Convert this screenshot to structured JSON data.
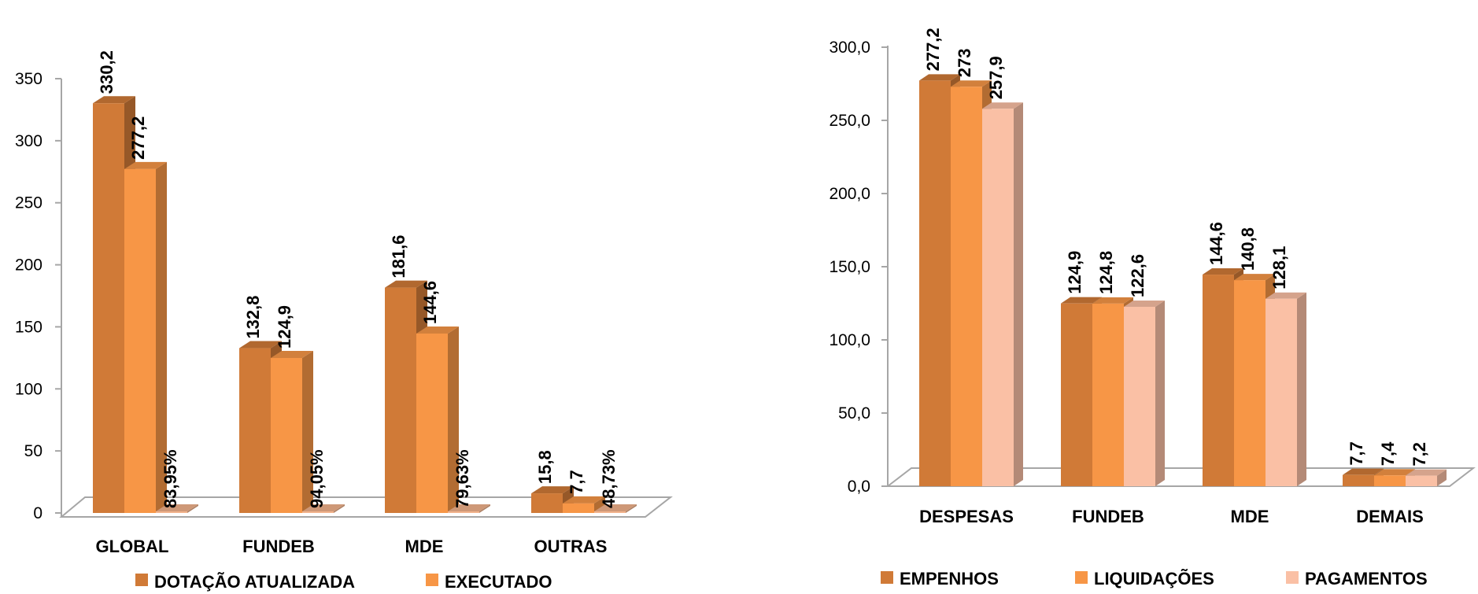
{
  "charts": [
    {
      "type": "bar",
      "categories": [
        "GLOBAL",
        "FUNDEB",
        "MDE",
        "OUTRAS"
      ],
      "series": [
        {
          "name": "DOTAÇÃO ATUALIZADA",
          "values": [
            330.2,
            132.8,
            181.6,
            15.8
          ],
          "labels": [
            "330,2",
            "132,8",
            "181,6",
            "15,8"
          ],
          "color": "#D07A37"
        },
        {
          "name": "EXECUTADO",
          "values": [
            277.2,
            124.9,
            144.6,
            7.7
          ],
          "labels": [
            "277,2",
            "124,9",
            "144,6",
            "7,7"
          ],
          "color": "#F79646"
        }
      ],
      "percent_labels": [
        "83,95%",
        "94,05%",
        "79,63%",
        "48,73%"
      ],
      "percent_color": "#F2B38C",
      "y_ticks": [
        "0",
        "50",
        "100",
        "150",
        "200",
        "250",
        "300",
        "350"
      ],
      "ylim": [
        0,
        350
      ],
      "legend_position": "bottom",
      "grid": false
    },
    {
      "type": "bar",
      "categories": [
        "DESPESAS",
        "FUNDEB",
        "MDE",
        "DEMAIS"
      ],
      "series": [
        {
          "name": "EMPENHOS",
          "values": [
            277.2,
            124.9,
            144.6,
            7.7
          ],
          "labels": [
            "277,2",
            "124,9",
            "144,6",
            "7,7"
          ],
          "color": "#D07A37"
        },
        {
          "name": "LIQUIDAÇÕES",
          "values": [
            273,
            124.8,
            140.8,
            7.4
          ],
          "labels": [
            "273",
            "124,8",
            "140,8",
            "7,4"
          ],
          "color": "#F79646"
        },
        {
          "name": "PAGAMENTOS",
          "values": [
            257.9,
            122.6,
            128.1,
            7.2
          ],
          "labels": [
            "257,9",
            "122,6",
            "128,1",
            "7,2"
          ],
          "color": "#FAC0A5"
        }
      ],
      "y_ticks": [
        "0,0",
        "50,0",
        "100,0",
        "150,0",
        "200,0",
        "250,0",
        "300,0"
      ],
      "ylim": [
        0,
        300
      ],
      "legend_position": "bottom",
      "grid": false
    }
  ]
}
